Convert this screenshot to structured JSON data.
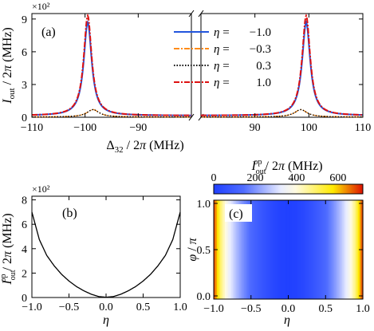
{
  "chart_data": [
    {
      "panel": "(a)",
      "type": "line",
      "xlabel": "Δ32 / 2π (MHz)",
      "ylabel": "Iout / 2π (MHz)",
      "y_multiplier": "×10²",
      "xlim_left": [
        -110,
        -80
      ],
      "xlim_right": [
        80,
        110
      ],
      "x_ticks_left": [
        "−110",
        "−100",
        "−90"
      ],
      "x_ticks_right": [
        "90",
        "100",
        "110"
      ],
      "ylim": [
        0,
        9.5
      ],
      "y_ticks": [
        "0",
        "3",
        "6",
        "9"
      ],
      "axis_break": "//",
      "legend_position": "top-right",
      "series": [
        {
          "name": "η = −1.0",
          "eta": "−1.0",
          "color": "#2255dd",
          "style": "solid",
          "peak": 8.7,
          "width": 0.9,
          "floor": 0.15
        },
        {
          "name": "η = −0.3",
          "eta": "−0.3",
          "color": "#ff8c1a",
          "style": "dashdot",
          "peak": 0.7,
          "width": 1.4,
          "floor": 0.02
        },
        {
          "name": "η = 0.3",
          "eta": "0.3",
          "color": "#000000",
          "style": "dotted",
          "peak": 0.7,
          "width": 1.4,
          "floor": 0.02
        },
        {
          "name": "η = 1.0",
          "eta": "1.0",
          "color": "#dd1111",
          "style": "dashdot",
          "peak": 9.3,
          "width": 0.9,
          "floor": 0.15
        }
      ],
      "peak_centers_left": {
        "strong": -99.5,
        "weak": -98.5
      },
      "peak_centers_right": {
        "strong": 99.5,
        "weak": 98.5
      }
    },
    {
      "panel": "(b)",
      "type": "line",
      "xlabel": "η",
      "ylabel": "Iout^op / 2π (MHz)",
      "y_multiplier": "×10²",
      "xlim": [
        -1.0,
        1.0
      ],
      "x_ticks": [
        "−1.0",
        "−0.5",
        "0.0",
        "0.5",
        "1.0"
      ],
      "ylim": [
        0,
        8.3
      ],
      "y_ticks": [
        "0",
        "2",
        "4",
        "6",
        "8"
      ],
      "series": [
        {
          "eta": [
            -1.0,
            -0.9,
            -0.8,
            -0.7,
            -0.6,
            -0.5,
            -0.4,
            -0.3,
            -0.2,
            -0.1,
            0.0,
            0.1,
            0.2,
            0.3,
            0.4,
            0.5,
            0.6,
            0.7,
            0.8,
            0.9,
            1.0
          ],
          "value": [
            7.0,
            4.75,
            3.45,
            2.6,
            1.9,
            1.35,
            0.9,
            0.55,
            0.27,
            0.08,
            0.02,
            0.08,
            0.27,
            0.55,
            0.9,
            1.35,
            1.9,
            2.6,
            3.45,
            4.75,
            7.0
          ]
        }
      ]
    },
    {
      "panel": "(c)",
      "type": "heatmap",
      "xlabel": "η",
      "ylabel": "φ / π",
      "colorbar_label": "Iout^op / 2π (MHz)",
      "colorbar_ticks": [
        "0",
        "200",
        "400",
        "600"
      ],
      "colorbar_range": [
        0,
        720
      ],
      "xlim": [
        -1.0,
        1.0
      ],
      "x_ticks": [
        "−1.0",
        "−0.5",
        "0.0",
        "0.5",
        "1.0"
      ],
      "ylim": [
        0.0,
        1.0
      ],
      "y_ticks": [
        "0.0",
        "0.5",
        "1.0"
      ],
      "colormap": [
        "#2040ff",
        "#ffffff",
        "#ffee00",
        "#dd1100"
      ],
      "eta_profile": [
        -1.0,
        -0.9,
        -0.8,
        -0.7,
        -0.6,
        -0.5,
        -0.4,
        -0.3,
        -0.2,
        -0.1,
        0.0,
        0.1,
        0.2,
        0.3,
        0.4,
        0.5,
        0.6,
        0.7,
        0.8,
        0.9,
        1.0
      ],
      "value_profile": [
        700,
        475,
        345,
        260,
        190,
        135,
        90,
        55,
        27,
        8,
        2,
        8,
        27,
        55,
        90,
        135,
        190,
        260,
        345,
        475,
        700
      ]
    }
  ]
}
